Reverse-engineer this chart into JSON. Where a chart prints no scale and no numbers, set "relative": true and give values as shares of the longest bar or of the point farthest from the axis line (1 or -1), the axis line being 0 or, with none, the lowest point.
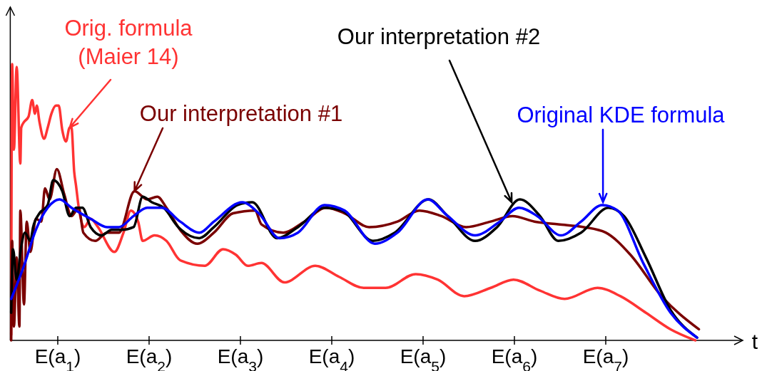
{
  "chart_data": {
    "type": "line",
    "relative": true,
    "xlabel": "t",
    "xlim": [
      0.48,
      8.5
    ],
    "xticks": [
      {
        "value": 1,
        "label": "E(a$_{1}$)"
      },
      {
        "value": 2,
        "label": "E(a$_{2}$)"
      },
      {
        "value": 3,
        "label": "E(a$_{3}$)"
      },
      {
        "value": 4,
        "label": "E(a$_{4}$)"
      },
      {
        "value": 5,
        "label": "E(a$_{5}$)"
      },
      {
        "value": 6,
        "label": "E(a$_{6}$)"
      },
      {
        "value": 7,
        "label": "E(a$_{7}$)"
      }
    ],
    "grid": false,
    "marker": "none",
    "line_style": "solid",
    "series": [
      {
        "color": "#ff3333",
        "x": [
          0.49,
          0.5,
          0.52,
          0.55,
          0.59,
          0.6,
          0.63,
          0.68,
          0.72,
          0.75,
          0.77,
          0.8,
          0.85,
          0.89,
          0.93,
          0.98,
          1.01,
          1.05,
          1.09,
          1.13,
          1.15,
          1.18,
          1.2,
          1.23,
          1.29,
          1.36,
          1.44,
          1.62,
          1.72,
          1.8,
          1.88,
          1.93,
          2.06,
          2.19,
          2.34,
          2.61,
          2.81,
          2.95,
          3.08,
          3.23,
          3.48,
          3.82,
          4.08,
          4.35,
          4.59,
          4.92,
          5.16,
          5.45,
          5.74,
          5.99,
          6.28,
          6.55,
          6.91,
          7.16,
          7.44,
          7.71,
          7.98
        ],
        "values": [
          0.02,
          1.0,
          0.69,
          0.99,
          0.64,
          0.77,
          0.79,
          0.81,
          0.87,
          0.82,
          0.85,
          0.79,
          0.73,
          0.77,
          0.82,
          0.85,
          0.85,
          0.76,
          0.72,
          0.77,
          0.77,
          0.61,
          0.56,
          0.48,
          0.41,
          0.44,
          0.41,
          0.32,
          0.39,
          0.47,
          0.43,
          0.36,
          0.38,
          0.36,
          0.29,
          0.27,
          0.33,
          0.31,
          0.27,
          0.28,
          0.21,
          0.27,
          0.23,
          0.19,
          0.19,
          0.24,
          0.22,
          0.16,
          0.19,
          0.22,
          0.18,
          0.15,
          0.19,
          0.16,
          0.1,
          0.04,
          0.0
        ]
      },
      {
        "color": "#7a0000",
        "x": [
          0.49,
          0.5,
          0.52,
          0.55,
          0.58,
          0.59,
          0.63,
          0.66,
          0.7,
          0.76,
          0.82,
          0.86,
          0.91,
          0.99,
          1.07,
          1.15,
          1.23,
          1.28,
          1.41,
          1.54,
          1.67,
          1.84,
          1.98,
          2.09,
          2.19,
          2.34,
          2.53,
          2.71,
          2.92,
          3.16,
          3.23,
          3.47,
          3.7,
          3.94,
          4.14,
          4.41,
          4.72,
          4.96,
          5.2,
          5.47,
          5.74,
          5.98,
          6.22,
          6.48,
          6.76,
          7.0,
          7.27,
          7.61,
          8.02
        ],
        "values": [
          0.0,
          0.36,
          0.05,
          0.3,
          0.05,
          0.47,
          0.13,
          0.43,
          0.32,
          0.44,
          0.43,
          0.55,
          0.51,
          0.62,
          0.53,
          0.45,
          0.48,
          0.39,
          0.36,
          0.39,
          0.39,
          0.54,
          0.51,
          0.52,
          0.48,
          0.4,
          0.35,
          0.39,
          0.46,
          0.47,
          0.42,
          0.39,
          0.43,
          0.48,
          0.46,
          0.41,
          0.43,
          0.47,
          0.45,
          0.41,
          0.43,
          0.45,
          0.43,
          0.42,
          0.41,
          0.39,
          0.31,
          0.16,
          0.04
        ]
      },
      {
        "color": "#000000",
        "x": [
          0.49,
          0.51,
          0.55,
          0.6,
          0.64,
          0.7,
          0.73,
          0.8,
          0.89,
          0.95,
          1.05,
          1.13,
          1.2,
          1.27,
          1.36,
          1.48,
          1.59,
          1.7,
          1.83,
          1.93,
          2.03,
          2.16,
          2.32,
          2.55,
          2.71,
          2.97,
          3.13,
          3.4,
          3.63,
          3.92,
          4.11,
          4.45,
          4.69,
          5.06,
          5.27,
          5.57,
          5.81,
          6.06,
          6.28,
          6.48,
          6.73,
          7.03,
          7.2,
          7.44,
          7.71,
          8.0
        ],
        "values": [
          0.1,
          0.33,
          0.22,
          0.34,
          0.39,
          0.36,
          0.41,
          0.46,
          0.49,
          0.58,
          0.54,
          0.45,
          0.48,
          0.48,
          0.41,
          0.38,
          0.4,
          0.4,
          0.41,
          0.52,
          0.5,
          0.48,
          0.41,
          0.37,
          0.41,
          0.49,
          0.5,
          0.37,
          0.41,
          0.48,
          0.47,
          0.36,
          0.39,
          0.51,
          0.45,
          0.36,
          0.41,
          0.51,
          0.45,
          0.36,
          0.39,
          0.48,
          0.45,
          0.3,
          0.11,
          0.01
        ]
      },
      {
        "color": "#0000ff",
        "x": [
          0.49,
          0.63,
          0.76,
          0.89,
          1.02,
          1.15,
          1.36,
          1.54,
          1.67,
          1.83,
          1.98,
          2.14,
          2.34,
          2.55,
          2.71,
          3.02,
          3.2,
          3.43,
          3.63,
          3.92,
          4.14,
          4.47,
          4.72,
          5.05,
          5.27,
          5.57,
          5.84,
          6.05,
          6.25,
          6.51,
          6.73,
          6.96,
          7.13,
          7.41,
          7.71,
          8.0
        ],
        "values": [
          0.15,
          0.27,
          0.4,
          0.48,
          0.51,
          0.48,
          0.44,
          0.41,
          0.41,
          0.45,
          0.48,
          0.48,
          0.43,
          0.39,
          0.43,
          0.5,
          0.46,
          0.37,
          0.39,
          0.49,
          0.47,
          0.35,
          0.39,
          0.51,
          0.45,
          0.38,
          0.43,
          0.48,
          0.45,
          0.38,
          0.43,
          0.49,
          0.47,
          0.28,
          0.1,
          0.01
        ]
      }
    ],
    "annotations": [
      {
        "text": "Orig. formula\n(Maier 14)",
        "x": 1.13,
        "y": 0.77
      },
      {
        "text": "Our interpretation #1",
        "x": 1.84,
        "y": 0.54
      },
      {
        "text": "Our interpretation #2",
        "x": 5.97,
        "y": 0.5
      },
      {
        "text": "Original KDE formula",
        "x": 6.97,
        "y": 0.5
      }
    ]
  }
}
